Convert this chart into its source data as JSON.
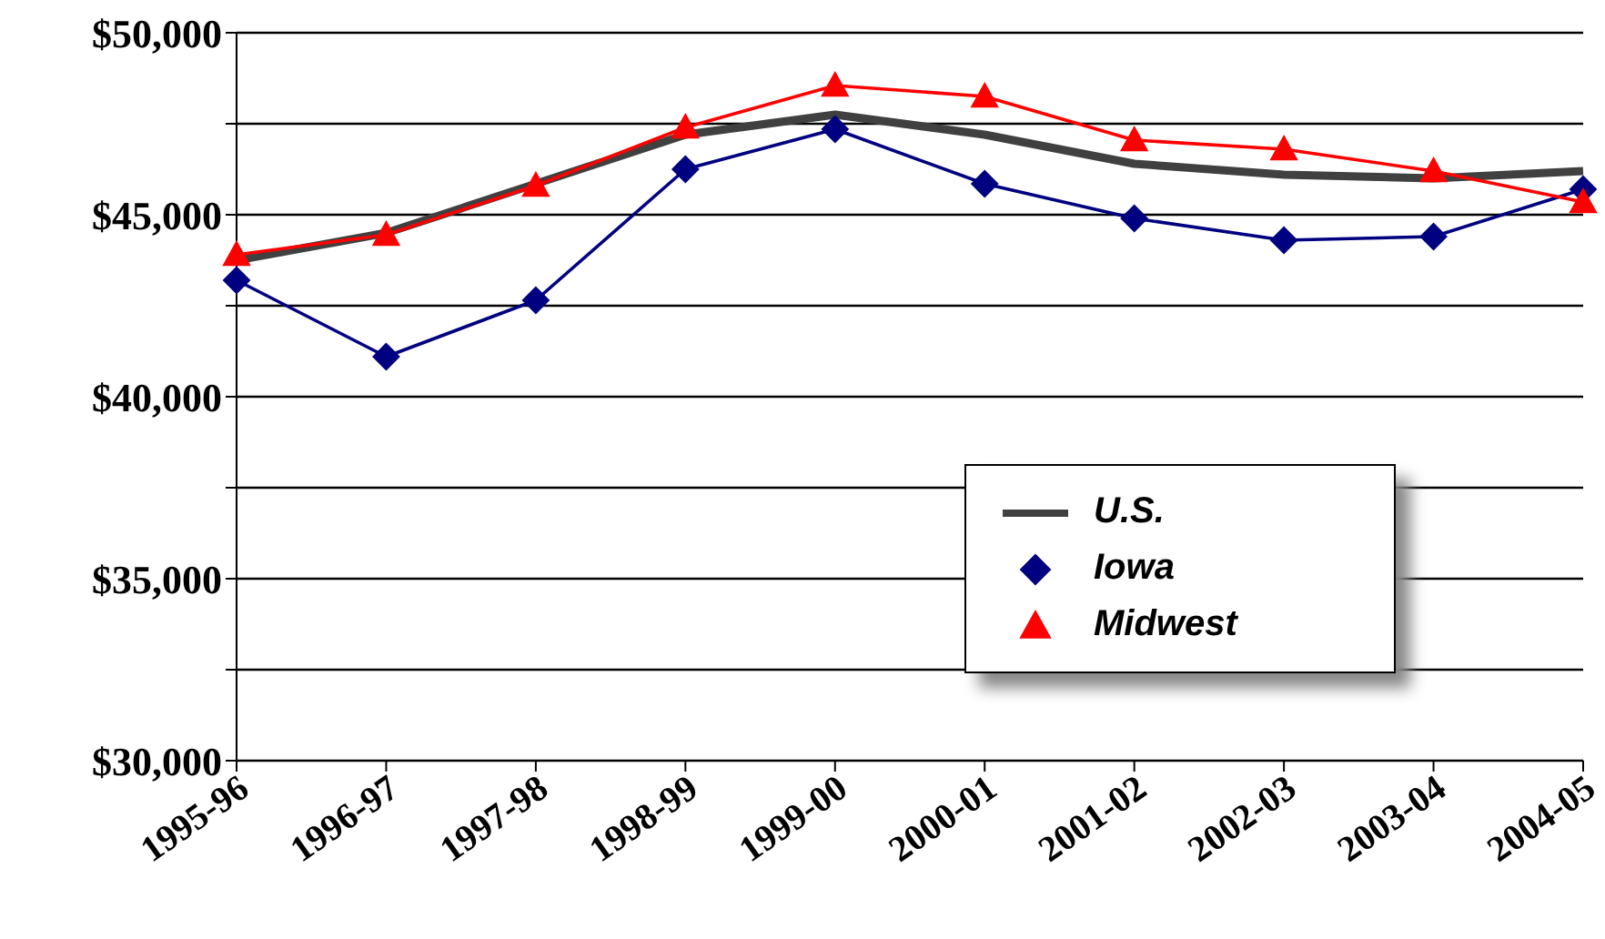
{
  "chart_data": {
    "type": "line",
    "categories": [
      "1995-96",
      "1996-97",
      "1997-98",
      "1998-99",
      "1999-00",
      "2000-01",
      "2001-02",
      "2002-03",
      "2003-04",
      "2004-05"
    ],
    "series": [
      {
        "name": "U.S.",
        "color": "#404040",
        "marker": "none",
        "values": [
          43750,
          44500,
          45850,
          47200,
          47750,
          47200,
          46400,
          46100,
          46000,
          46200
        ]
      },
      {
        "name": "Iowa",
        "color": "#000080",
        "marker": "diamond",
        "values": [
          43200,
          41100,
          42650,
          46250,
          47350,
          45850,
          44900,
          44300,
          44400,
          45700
        ]
      },
      {
        "name": "Midwest",
        "color": "#ff0000",
        "marker": "triangle",
        "values": [
          43900,
          44450,
          45800,
          47400,
          48550,
          48250,
          47050,
          46800,
          46200,
          45350
        ]
      }
    ],
    "ylim": [
      30000,
      50000
    ],
    "yticks": [
      {
        "value": 30000,
        "label": "$30,000"
      },
      {
        "value": 32500,
        "label": null
      },
      {
        "value": 35000,
        "label": "$35,000"
      },
      {
        "value": 37500,
        "label": null
      },
      {
        "value": 40000,
        "label": "$40,000"
      },
      {
        "value": 42500,
        "label": null
      },
      {
        "value": 45000,
        "label": "$45,000"
      },
      {
        "value": 47500,
        "label": null
      },
      {
        "value": 50000,
        "label": "$50,000"
      }
    ],
    "grid": "y",
    "legend": "bottom right",
    "line_style": "solid"
  }
}
